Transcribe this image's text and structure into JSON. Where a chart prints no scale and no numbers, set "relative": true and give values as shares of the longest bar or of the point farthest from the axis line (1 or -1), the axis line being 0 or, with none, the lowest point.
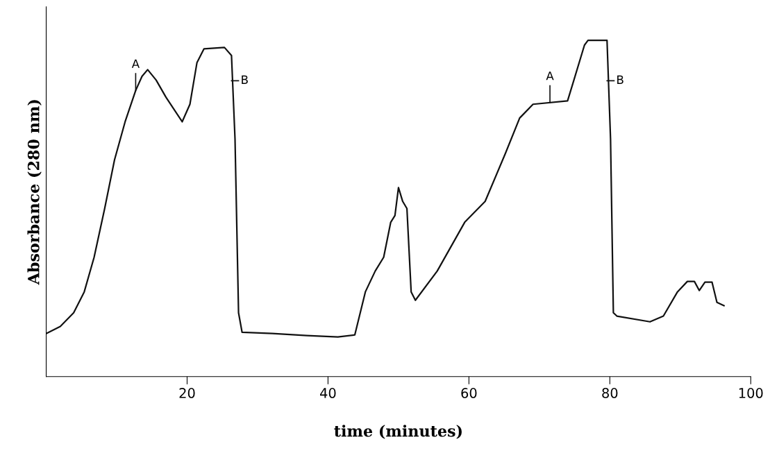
{
  "chart_data": {
    "type": "line",
    "relative": true,
    "xlabel": "time (minutes)",
    "ylabel": "Absorbance (280 nm)",
    "color": "#111111",
    "xlim": [
      0,
      100
    ],
    "xticks": [
      20,
      40,
      60,
      80,
      100
    ],
    "grid": false,
    "legend": false,
    "marker": "none",
    "line_style": "solid",
    "x": [
      0,
      2,
      3.9,
      5.4,
      6.8,
      8.3,
      9.7,
      11.2,
      12.7,
      13.6,
      14.4,
      15.6,
      17.0,
      19.3,
      20.4,
      21.4,
      22.4,
      25.3,
      26.3,
      26.8,
      27.3,
      27.8,
      32.1,
      37.0,
      41.4,
      43.8,
      45.3,
      46.7,
      47.9,
      48.9,
      49.5,
      50.0,
      50.6,
      51.2,
      51.8,
      52.4,
      55.5,
      59.4,
      62.3,
      65.2,
      67.2,
      69.1,
      74.0,
      74.9,
      76.4,
      76.9,
      79.6,
      80.1,
      80.5,
      81.0,
      85.7,
      87.6,
      89.6,
      91.0,
      92.0,
      92.7,
      93.5,
      94.5,
      95.2,
      96.2
    ],
    "values": [
      0.128,
      0.149,
      0.19,
      0.252,
      0.355,
      0.5,
      0.645,
      0.758,
      0.851,
      0.893,
      0.913,
      0.882,
      0.831,
      0.758,
      0.81,
      0.934,
      0.975,
      0.979,
      0.955,
      0.707,
      0.19,
      0.132,
      0.128,
      0.122,
      0.118,
      0.124,
      0.252,
      0.314,
      0.355,
      0.459,
      0.479,
      0.562,
      0.521,
      0.5,
      0.252,
      0.227,
      0.314,
      0.459,
      0.521,
      0.665,
      0.769,
      0.81,
      0.82,
      0.882,
      0.986,
      1.0,
      1.0,
      0.707,
      0.19,
      0.18,
      0.163,
      0.18,
      0.252,
      0.283,
      0.283,
      0.256,
      0.281,
      0.281,
      0.221,
      0.211
    ],
    "annotations": [
      {
        "text": "A",
        "x": 12.7,
        "y": 0.851
      },
      {
        "text": "B",
        "x": 26.8,
        "y": 0.88
      },
      {
        "text": "A",
        "x": 71.5,
        "y": 0.815
      },
      {
        "text": "B",
        "x": 80.1,
        "y": 0.88
      }
    ]
  }
}
